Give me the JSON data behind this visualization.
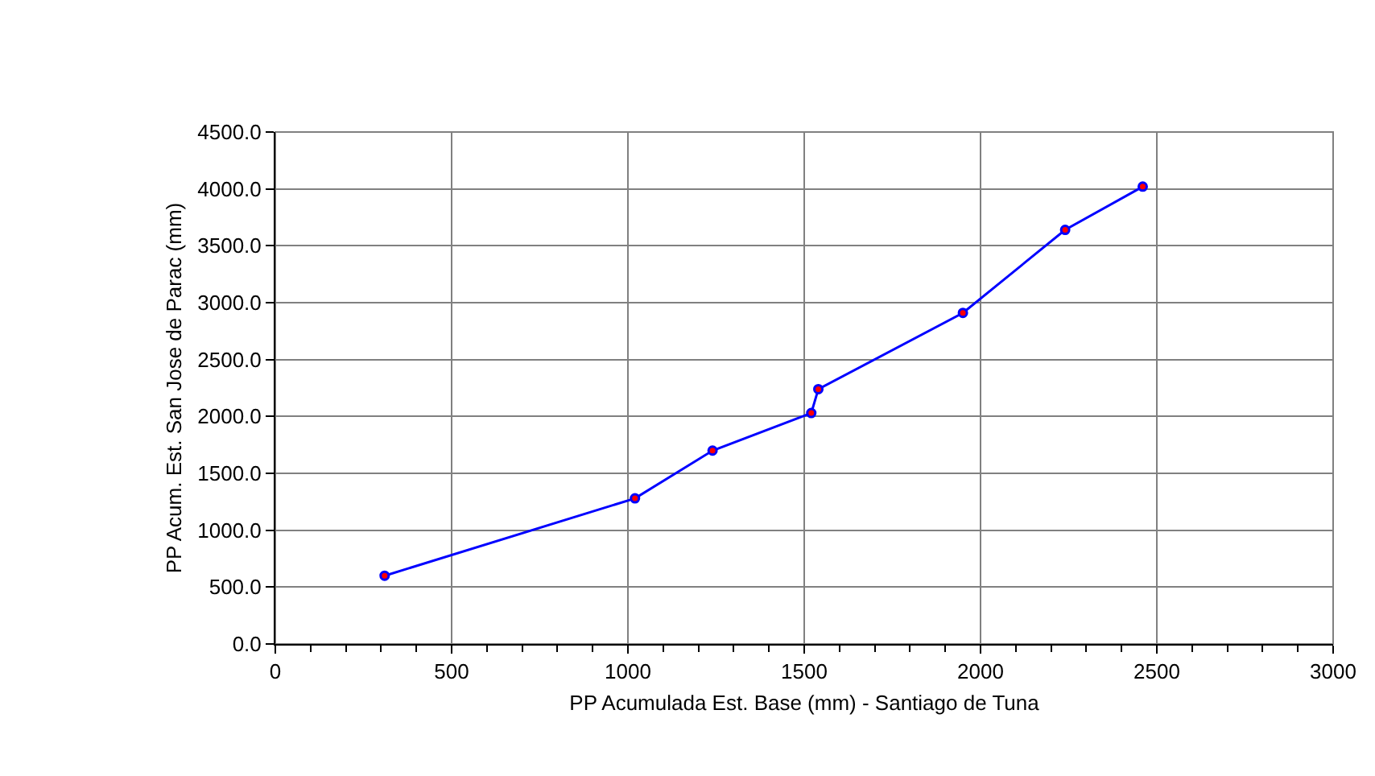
{
  "chart_data": {
    "type": "line",
    "xlabel": "PP Acumulada Est. Base (mm) - Santiago de Tuna",
    "ylabel": "PP Acum. Est. San Jose de Parac (mm)",
    "x": [
      310,
      1020,
      1240,
      1520,
      1540,
      1950,
      2240,
      2460
    ],
    "series": [
      {
        "color": "#0000ff",
        "values": [
          600,
          1280,
          1700,
          2030,
          2240,
          2910,
          3640,
          4020
        ]
      }
    ],
    "marker": "circle",
    "line_style": "solid",
    "grid": true,
    "xlim": [
      0,
      3000
    ],
    "xticks": [
      0,
      {
        "value": 100,
        "label": null
      },
      {
        "value": 200,
        "label": null
      },
      {
        "value": 300,
        "label": null
      },
      {
        "value": 400,
        "label": null
      },
      500,
      {
        "value": 600,
        "label": null
      },
      {
        "value": 700,
        "label": null
      },
      {
        "value": 800,
        "label": null
      },
      {
        "value": 900,
        "label": null
      },
      1000,
      {
        "value": 1100,
        "label": null
      },
      {
        "value": 1200,
        "label": null
      },
      {
        "value": 1300,
        "label": null
      },
      {
        "value": 1400,
        "label": null
      },
      1500,
      {
        "value": 1600,
        "label": null
      },
      {
        "value": 1700,
        "label": null
      },
      {
        "value": 1800,
        "label": null
      },
      {
        "value": 1900,
        "label": null
      },
      2000,
      {
        "value": 2100,
        "label": null
      },
      {
        "value": 2200,
        "label": null
      },
      {
        "value": 2300,
        "label": null
      },
      {
        "value": 2400,
        "label": null
      },
      2500,
      {
        "value": 2600,
        "label": null
      },
      {
        "value": 2700,
        "label": null
      },
      {
        "value": 2800,
        "label": null
      },
      {
        "value": 2900,
        "label": null
      },
      3000
    ],
    "ylim": [
      0,
      4500
    ],
    "yticks": [
      {
        "value": 0,
        "label": "0.0"
      },
      {
        "value": 500,
        "label": "500.0"
      },
      {
        "value": 1000,
        "label": "1000.0"
      },
      {
        "value": 1500,
        "label": "1500.0"
      },
      {
        "value": 2000,
        "label": "2000.0"
      },
      {
        "value": 2500,
        "label": "2500.0"
      },
      {
        "value": 3000,
        "label": "3000.0"
      },
      {
        "value": 3500,
        "label": "3500.0"
      },
      {
        "value": 4000,
        "label": "4000.0"
      },
      {
        "value": 4500,
        "label": "4500.0"
      }
    ]
  }
}
